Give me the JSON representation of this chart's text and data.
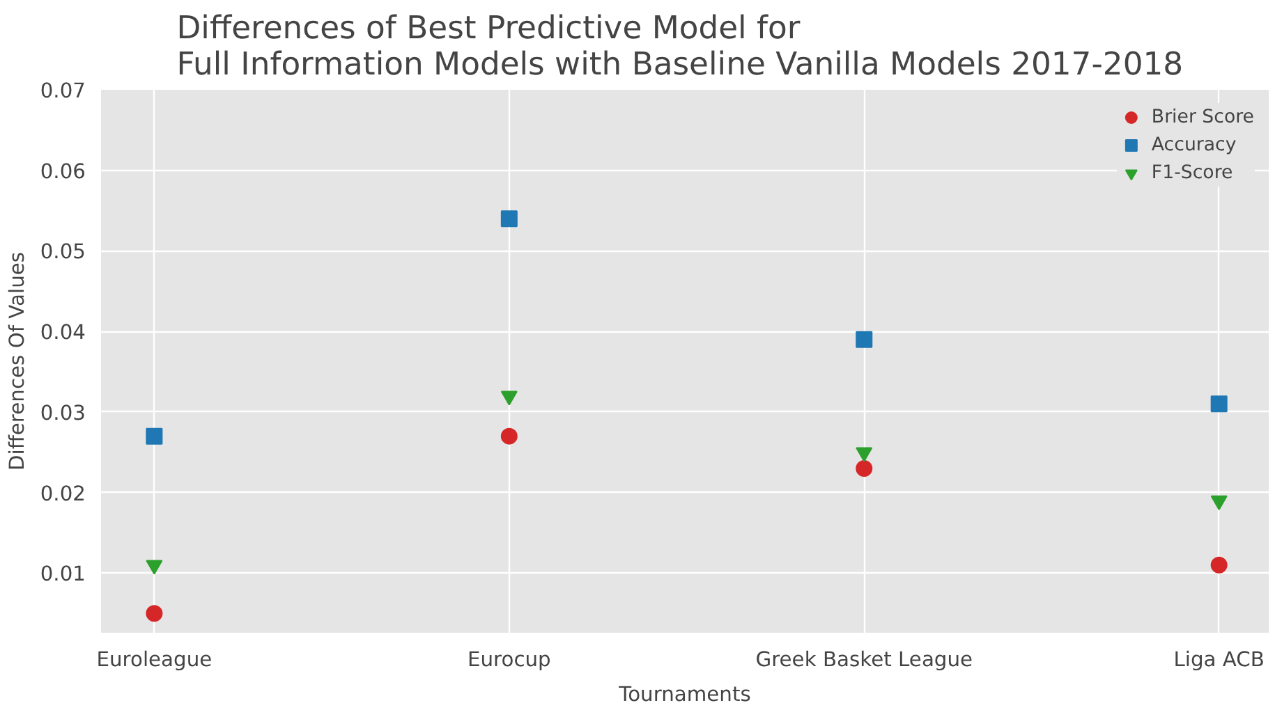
{
  "chart_data": {
    "type": "scatter",
    "title": "Differences of Best Predictive Model for\nFull Information Models  with Baseline Vanilla Models 2017-2018",
    "xlabel": "Tournaments",
    "ylabel": "Differences Of Values",
    "categories": [
      "Euroleague",
      "Eurocup",
      "Greek Basket League",
      "Liga ACB"
    ],
    "series": [
      {
        "name": "Brier Score",
        "color": "#d62728",
        "marker": "circle",
        "values": [
          0.005,
          0.027,
          0.023,
          0.011
        ]
      },
      {
        "name": "Accuracy",
        "color": "#1f77b4",
        "marker": "square",
        "values": [
          0.027,
          0.054,
          0.039,
          0.031
        ]
      },
      {
        "name": "F1-Score",
        "color": "#2ca02c",
        "marker": "triangle",
        "values": [
          0.011,
          0.032,
          0.025,
          0.019
        ]
      }
    ],
    "ylim": [
      0.0026,
      0.07
    ],
    "yticks": [
      {
        "value": 0.01,
        "label": "0.01"
      },
      {
        "value": 0.02,
        "label": "0.02"
      },
      {
        "value": 0.03,
        "label": "0.03"
      },
      {
        "value": 0.04,
        "label": "0.04"
      },
      {
        "value": 0.05,
        "label": "0.05"
      },
      {
        "value": 0.06,
        "label": "0.06"
      },
      {
        "value": 0.07,
        "label": "0.07"
      }
    ],
    "grid": true,
    "legend": "top right"
  }
}
